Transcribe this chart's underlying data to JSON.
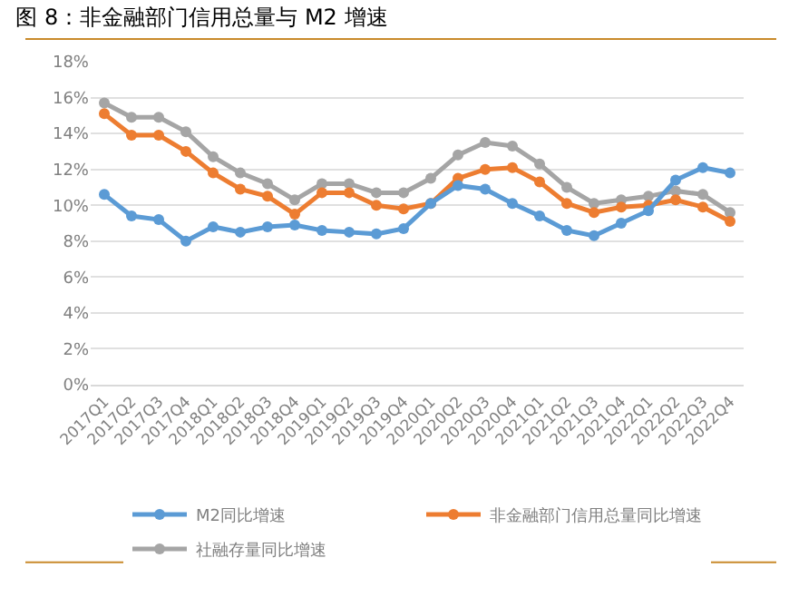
{
  "chart_data": {
    "type": "line",
    "title": "图 8：非金融部门信用总量与 M2 增速",
    "categories": [
      "2017Q1",
      "2017Q2",
      "2017Q3",
      "2017Q4",
      "2018Q1",
      "2018Q2",
      "2018Q3",
      "2018Q4",
      "2019Q1",
      "2019Q2",
      "2019Q3",
      "2019Q4",
      "2020Q1",
      "2020Q2",
      "2020Q3",
      "2020Q4",
      "2021Q1",
      "2021Q2",
      "2021Q3",
      "2021Q4",
      "2022Q1",
      "2022Q2",
      "2022Q3",
      "2022Q4"
    ],
    "series": [
      {
        "name": "M2同比增速",
        "color": "#5b9bd5",
        "values": [
          10.6,
          9.4,
          9.2,
          8.0,
          8.8,
          8.5,
          8.8,
          8.9,
          8.6,
          8.5,
          8.4,
          8.7,
          10.1,
          11.1,
          10.9,
          10.1,
          9.4,
          8.6,
          8.3,
          9.0,
          9.7,
          11.4,
          12.1,
          11.8
        ]
      },
      {
        "name": "非金融部门信用总量同比增速",
        "color": "#ed7d31",
        "values": [
          15.1,
          13.9,
          13.9,
          13.0,
          11.8,
          10.9,
          10.5,
          9.5,
          10.7,
          10.7,
          10.0,
          9.8,
          10.1,
          11.5,
          12.0,
          12.1,
          11.3,
          10.1,
          9.6,
          9.9,
          10.0,
          10.3,
          9.9,
          9.1
        ]
      },
      {
        "name": "社融存量同比增速",
        "color": "#a5a5a5",
        "values": [
          15.7,
          14.9,
          14.9,
          14.1,
          12.7,
          11.8,
          11.2,
          10.3,
          11.2,
          11.2,
          10.7,
          10.7,
          11.5,
          12.8,
          13.5,
          13.3,
          12.3,
          11.0,
          10.1,
          10.3,
          10.5,
          10.8,
          10.6,
          9.6
        ]
      }
    ],
    "ylim": [
      0,
      18
    ],
    "yticks": [
      {
        "value": 0,
        "label": "0%"
      },
      {
        "value": 2,
        "label": "2%"
      },
      {
        "value": 4,
        "label": "4%"
      },
      {
        "value": 6,
        "label": "6%"
      },
      {
        "value": 8,
        "label": "8%"
      },
      {
        "value": 10,
        "label": "10%"
      },
      {
        "value": 12,
        "label": "12%"
      },
      {
        "value": 14,
        "label": "14%"
      },
      {
        "value": 16,
        "label": "16%"
      },
      {
        "value": 18,
        "label": "18%"
      }
    ],
    "grid": "y",
    "legend": "bottom",
    "marker": "circle",
    "line_style": "solid"
  }
}
